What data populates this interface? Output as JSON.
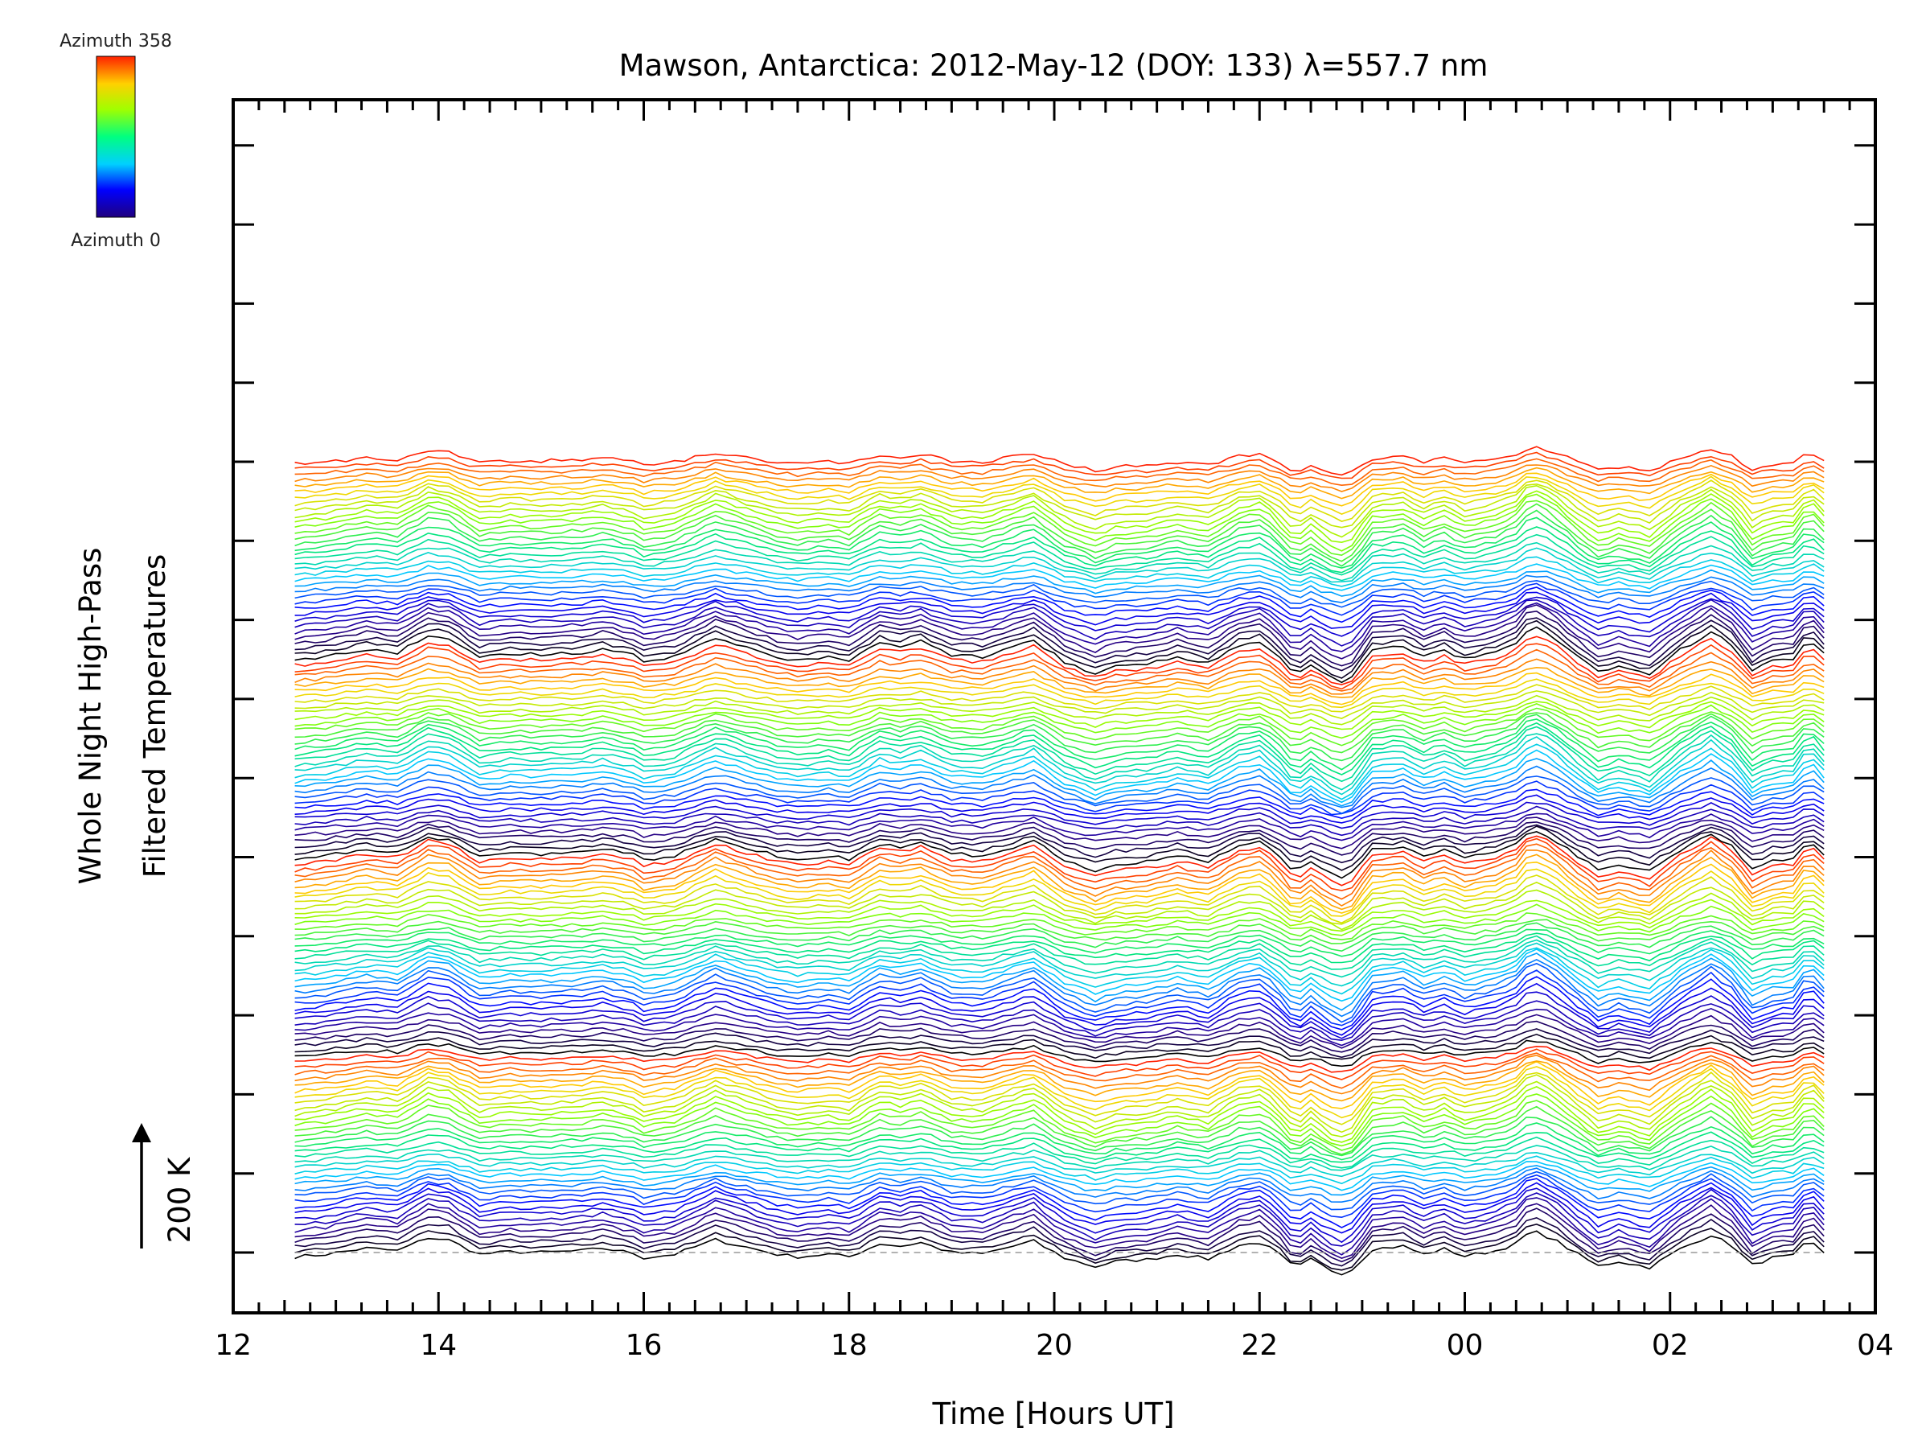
{
  "chart_data": {
    "type": "line",
    "title": "Mawson, Antarctica: 2012-May-12 (DOY: 133) λ=557.7 nm",
    "xlabel": "Time [Hours UT]",
    "ylabel_line1": "Whole Night High-Pass",
    "ylabel_line2": "Filtered Temperatures",
    "x_tick_labels": [
      "12",
      "14",
      "16",
      "18",
      "20",
      "22",
      "00",
      "02",
      "04"
    ],
    "xlim": [
      12,
      28
    ],
    "x_range_data": [
      12.6,
      27.5
    ],
    "scale_indicator": {
      "arrow": "↑",
      "label": "200 K"
    },
    "colorbar": {
      "top_label": "Azimuth 358",
      "bottom_label": "Azimuth 0",
      "colormap": "rainbow"
    },
    "series_count": 144,
    "series_spacing_yticks": 0.7,
    "n_y_ticks": 15,
    "baseline_dashed": true,
    "grid": false,
    "common_signal": [
      [
        12.6,
        -0.12
      ],
      [
        12.9,
        -0.05
      ],
      [
        13.3,
        0.12
      ],
      [
        13.6,
        0.05
      ],
      [
        13.9,
        0.42
      ],
      [
        14.1,
        0.35
      ],
      [
        14.4,
        -0.05
      ],
      [
        14.7,
        0.02
      ],
      [
        15.0,
        0.0
      ],
      [
        15.4,
        0.05
      ],
      [
        15.6,
        0.12
      ],
      [
        15.9,
        -0.02
      ],
      [
        16.0,
        -0.15
      ],
      [
        16.3,
        -0.05
      ],
      [
        16.7,
        0.36
      ],
      [
        16.9,
        0.22
      ],
      [
        17.3,
        -0.05
      ],
      [
        17.5,
        -0.12
      ],
      [
        17.8,
        -0.05
      ],
      [
        18.0,
        -0.12
      ],
      [
        18.3,
        0.25
      ],
      [
        18.5,
        0.18
      ],
      [
        18.7,
        0.28
      ],
      [
        19.0,
        0.0
      ],
      [
        19.3,
        -0.04
      ],
      [
        19.6,
        0.18
      ],
      [
        19.8,
        0.32
      ],
      [
        20.1,
        -0.15
      ],
      [
        20.4,
        -0.4
      ],
      [
        20.6,
        -0.25
      ],
      [
        20.9,
        -0.2
      ],
      [
        21.2,
        -0.05
      ],
      [
        21.5,
        -0.18
      ],
      [
        21.8,
        0.2
      ],
      [
        22.0,
        0.28
      ],
      [
        22.15,
        0.05
      ],
      [
        22.35,
        -0.45
      ],
      [
        22.5,
        -0.2
      ],
      [
        22.7,
        -0.5
      ],
      [
        22.85,
        -0.62
      ],
      [
        23.1,
        0.1
      ],
      [
        23.4,
        0.18
      ],
      [
        23.6,
        -0.05
      ],
      [
        23.8,
        0.1
      ],
      [
        24.0,
        -0.1
      ],
      [
        24.3,
        0.05
      ],
      [
        24.5,
        0.25
      ],
      [
        24.65,
        0.62
      ],
      [
        24.85,
        0.4
      ],
      [
        25.1,
        -0.05
      ],
      [
        25.3,
        -0.38
      ],
      [
        25.5,
        -0.25
      ],
      [
        25.8,
        -0.42
      ],
      [
        26.1,
        0.1
      ],
      [
        26.4,
        0.5
      ],
      [
        26.6,
        0.2
      ],
      [
        26.8,
        -0.35
      ],
      [
        27.0,
        -0.15
      ],
      [
        27.2,
        -0.1
      ],
      [
        27.35,
        0.35
      ],
      [
        27.5,
        0.0
      ]
    ]
  }
}
